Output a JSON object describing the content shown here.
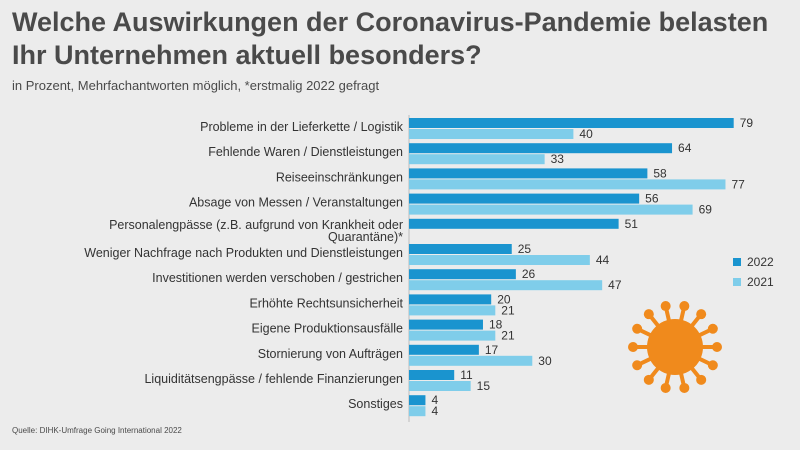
{
  "title": "Welche Auswirkungen der Coronavirus-Pandemie belasten Ihr Unternehmen aktuell besonders?",
  "subtitle": "in Prozent, Mehrfachantworten möglich, *erstmalig 2022 gefragt",
  "source": "Quelle: DIHK-Umfrage Going International 2022",
  "colors": {
    "series_2022": "#1a94cf",
    "series_2021": "#7fcdea",
    "virus": "#f08a1c",
    "background": "#ececec"
  },
  "chart_data": {
    "type": "bar",
    "orientation": "horizontal",
    "categories": [
      "Probleme in der Lieferkette / Logistik",
      "Fehlende Waren / Dienstleistungen",
      "Reiseeinschränkungen",
      "Absage von Messen / Veranstaltungen",
      "Personalengpässe (z.B. aufgrund von Krankheit oder Quarantäne)*",
      "Weniger Nachfrage nach  Produkten und Dienstleistungen",
      "Investitionen werden verschoben / gestrichen",
      "Erhöhte Rechtsunsicherheit",
      "Eigene Produktionsausfälle",
      "Stornierung von Aufträgen",
      "Liquiditätsengpässe / fehlende Finanzierungen",
      "Sonstiges"
    ],
    "series": [
      {
        "name": "2022",
        "values": [
          79,
          64,
          58,
          56,
          51,
          25,
          26,
          20,
          18,
          17,
          11,
          4
        ]
      },
      {
        "name": "2021",
        "values": [
          40,
          33,
          77,
          69,
          null,
          44,
          47,
          21,
          21,
          30,
          15,
          4
        ]
      }
    ],
    "xlim": [
      0,
      80
    ],
    "legend_position": "right",
    "grid": false
  }
}
